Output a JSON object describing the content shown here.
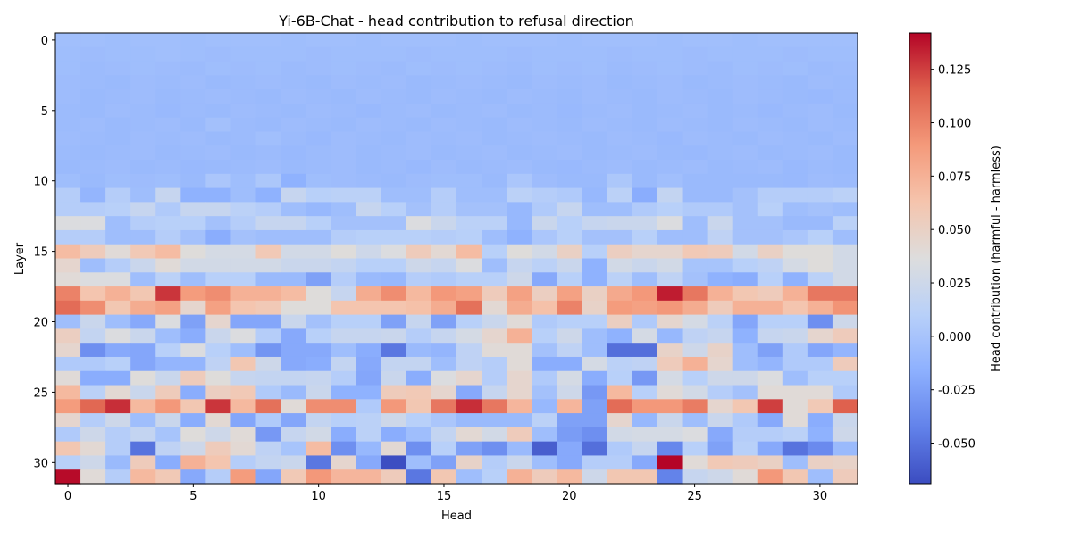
{
  "chart_data": {
    "type": "heatmap",
    "title": "Yi-6B-Chat - head contribution to refusal direction",
    "xlabel": "Head",
    "ylabel": "Layer",
    "colorbar_label": "Head contribution (harmful - harmless)",
    "colormap": "coolwarm",
    "vmin": -0.069,
    "vmax": 0.142,
    "x_ticks": [
      0,
      5,
      10,
      15,
      20,
      25,
      30
    ],
    "y_ticks": [
      0,
      5,
      10,
      15,
      20,
      25,
      30
    ],
    "colorbar_ticks": [
      "-0.050",
      "-0.025",
      "0.000",
      "0.025",
      "0.050",
      "0.075",
      "0.100",
      "0.125"
    ],
    "colorbar_tick_values": [
      -0.05,
      -0.025,
      0.0,
      0.025,
      0.05,
      0.075,
      0.1,
      0.125
    ],
    "grid": false,
    "values": [
      [
        -0.004,
        -0.004,
        -0.005,
        -0.004,
        -0.004,
        -0.005,
        -0.004,
        -0.004,
        -0.004,
        -0.005,
        -0.004,
        -0.004,
        -0.005,
        -0.004,
        -0.004,
        -0.004,
        -0.005,
        -0.004,
        -0.004,
        -0.004,
        -0.005,
        -0.004,
        -0.004,
        -0.004,
        -0.005,
        -0.004,
        -0.004,
        -0.005,
        -0.004,
        -0.004,
        -0.004,
        -0.004
      ],
      [
        -0.005,
        -0.006,
        -0.005,
        -0.005,
        -0.004,
        -0.005,
        -0.006,
        -0.005,
        -0.005,
        -0.005,
        -0.006,
        -0.005,
        -0.005,
        -0.005,
        -0.006,
        -0.005,
        -0.005,
        -0.005,
        -0.006,
        -0.005,
        -0.005,
        -0.005,
        -0.006,
        -0.005,
        -0.005,
        -0.006,
        -0.005,
        -0.005,
        -0.005,
        -0.006,
        -0.005,
        -0.005
      ],
      [
        -0.005,
        -0.007,
        -0.006,
        -0.005,
        -0.006,
        -0.007,
        -0.005,
        -0.006,
        -0.005,
        -0.007,
        -0.006,
        -0.005,
        -0.006,
        -0.007,
        -0.005,
        -0.006,
        -0.005,
        -0.006,
        -0.007,
        -0.005,
        -0.006,
        -0.005,
        -0.007,
        -0.006,
        -0.005,
        -0.006,
        -0.007,
        -0.005,
        -0.006,
        -0.005,
        -0.007,
        -0.006
      ],
      [
        -0.006,
        -0.007,
        -0.008,
        -0.006,
        -0.007,
        -0.006,
        -0.008,
        -0.007,
        -0.006,
        -0.007,
        -0.008,
        -0.006,
        -0.007,
        -0.006,
        -0.008,
        -0.007,
        -0.006,
        -0.007,
        -0.008,
        -0.006,
        -0.007,
        -0.006,
        -0.008,
        -0.007,
        -0.006,
        -0.008,
        -0.007,
        -0.006,
        -0.007,
        -0.008,
        -0.006,
        -0.007
      ],
      [
        -0.006,
        -0.008,
        -0.007,
        -0.006,
        -0.008,
        -0.007,
        -0.006,
        -0.007,
        -0.008,
        -0.006,
        -0.007,
        -0.008,
        -0.006,
        -0.007,
        -0.008,
        -0.006,
        -0.007,
        -0.008,
        -0.006,
        -0.007,
        -0.008,
        -0.006,
        -0.007,
        -0.008,
        -0.006,
        -0.007,
        -0.008,
        -0.006,
        -0.007,
        -0.008,
        -0.009,
        -0.007
      ],
      [
        -0.007,
        -0.008,
        -0.006,
        -0.007,
        -0.009,
        -0.007,
        -0.008,
        -0.006,
        -0.007,
        -0.008,
        -0.006,
        -0.007,
        -0.009,
        -0.007,
        -0.006,
        -0.008,
        -0.007,
        -0.006,
        -0.008,
        -0.007,
        -0.009,
        -0.007,
        -0.006,
        -0.008,
        -0.007,
        -0.006,
        -0.008,
        -0.007,
        -0.009,
        -0.007,
        -0.006,
        -0.008
      ],
      [
        -0.007,
        -0.006,
        -0.008,
        -0.007,
        -0.006,
        -0.008,
        -0.003,
        -0.007,
        -0.008,
        -0.006,
        -0.007,
        -0.008,
        -0.006,
        -0.007,
        -0.008,
        -0.006,
        -0.007,
        -0.008,
        -0.006,
        -0.007,
        -0.008,
        -0.006,
        -0.007,
        -0.008,
        -0.006,
        -0.007,
        -0.008,
        -0.006,
        -0.007,
        -0.008,
        -0.006,
        -0.007
      ],
      [
        -0.006,
        -0.007,
        -0.008,
        -0.006,
        -0.007,
        -0.006,
        -0.008,
        -0.007,
        -0.004,
        -0.007,
        -0.009,
        -0.006,
        -0.007,
        -0.008,
        -0.006,
        -0.007,
        -0.006,
        -0.008,
        -0.007,
        -0.006,
        -0.007,
        -0.008,
        -0.006,
        -0.007,
        -0.009,
        -0.006,
        -0.007,
        -0.008,
        -0.006,
        -0.007,
        -0.008,
        -0.006
      ],
      [
        -0.007,
        -0.008,
        -0.007,
        -0.006,
        -0.008,
        -0.007,
        -0.006,
        -0.008,
        -0.007,
        -0.009,
        -0.007,
        -0.006,
        -0.008,
        -0.007,
        -0.006,
        -0.008,
        -0.007,
        -0.006,
        -0.008,
        -0.007,
        -0.006,
        -0.008,
        -0.007,
        -0.006,
        -0.008,
        -0.009,
        -0.007,
        -0.006,
        -0.008,
        -0.007,
        -0.006,
        -0.008
      ],
      [
        -0.008,
        -0.007,
        -0.006,
        -0.008,
        -0.007,
        -0.009,
        -0.008,
        -0.007,
        -0.006,
        -0.008,
        -0.007,
        -0.006,
        -0.008,
        -0.007,
        -0.009,
        -0.006,
        -0.008,
        -0.007,
        -0.006,
        -0.008,
        -0.009,
        -0.007,
        -0.006,
        -0.008,
        -0.007,
        -0.006,
        -0.008,
        -0.007,
        -0.006,
        -0.009,
        -0.007,
        -0.008
      ],
      [
        -0.005,
        -0.008,
        -0.005,
        -0.006,
        -0.005,
        -0.008,
        0.002,
        -0.005,
        0.003,
        -0.015,
        -0.005,
        -0.006,
        -0.007,
        -0.008,
        -0.006,
        -0.005,
        -0.005,
        -0.008,
        0.002,
        -0.006,
        -0.008,
        -0.008,
        0.003,
        -0.008,
        -0.004,
        -0.008,
        -0.008,
        -0.008,
        -0.008,
        -0.009,
        -0.006,
        -0.007
      ],
      [
        0.008,
        -0.012,
        0.008,
        -0.005,
        0.02,
        -0.015,
        -0.015,
        -0.005,
        -0.015,
        0.02,
        0.01,
        0.012,
        0.012,
        -0.005,
        -0.005,
        0.008,
        -0.005,
        -0.005,
        0.012,
        0.008,
        0.005,
        -0.01,
        0.012,
        -0.018,
        0.018,
        -0.008,
        -0.008,
        -0.002,
        0.008,
        0.008,
        0.008,
        0.012
      ],
      [
        0.008,
        0.008,
        0.01,
        0.02,
        0.005,
        0.02,
        0.02,
        0.012,
        0.008,
        -0.005,
        -0.01,
        -0.005,
        0.02,
        0.01,
        -0.002,
        0.008,
        -0.002,
        -0.002,
        -0.01,
        0.005,
        0.02,
        -0.005,
        -0.005,
        0.005,
        0.01,
        0.005,
        0.005,
        -0.002,
        0.01,
        -0.005,
        -0.002,
        -0.005
      ],
      [
        0.035,
        0.035,
        -0.005,
        0.008,
        0.01,
        0.01,
        -0.002,
        0.008,
        0.02,
        0.02,
        0.01,
        -0.002,
        -0.002,
        -0.002,
        0.035,
        0.022,
        0.012,
        0.012,
        -0.01,
        0.022,
        0.01,
        0.02,
        0.022,
        0.022,
        0.035,
        -0.005,
        0.022,
        -0.002,
        -0.002,
        -0.008,
        -0.008,
        0.012
      ],
      [
        0.008,
        0.008,
        -0.005,
        -0.005,
        0.008,
        -0.002,
        -0.018,
        -0.002,
        -0.005,
        -0.005,
        -0.005,
        0.008,
        0.01,
        0.01,
        0.01,
        0.008,
        0.01,
        -0.005,
        -0.015,
        0.002,
        0.01,
        -0.002,
        -0.002,
        0.01,
        -0.005,
        -0.005,
        0.015,
        -0.002,
        -0.002,
        0.002,
        0.01,
        -0.005
      ],
      [
        0.068,
        0.055,
        0.04,
        0.058,
        0.068,
        0.038,
        0.03,
        0.03,
        0.058,
        0.028,
        0.028,
        0.038,
        0.025,
        0.035,
        0.055,
        0.042,
        0.068,
        0.01,
        0.038,
        0.028,
        0.05,
        0.01,
        0.052,
        0.045,
        0.045,
        0.058,
        0.055,
        0.028,
        0.05,
        0.038,
        0.038,
        0.028
      ],
      [
        0.045,
        -0.005,
        0.008,
        0.022,
        0.04,
        0.028,
        0.028,
        0.028,
        0.028,
        0.022,
        0.022,
        0.018,
        0.01,
        0.01,
        0.025,
        0.02,
        0.035,
        -0.005,
        0.02,
        0.012,
        0.022,
        -0.015,
        0.028,
        0.022,
        0.028,
        0.0,
        0.0,
        0.01,
        0.015,
        0.03,
        0.038,
        0.028
      ],
      [
        0.04,
        0.035,
        0.035,
        -0.005,
        0.012,
        -0.005,
        0.01,
        0.01,
        -0.008,
        -0.008,
        -0.025,
        0.008,
        -0.008,
        -0.01,
        0.008,
        0.005,
        0.01,
        0.01,
        0.025,
        -0.02,
        0.01,
        -0.015,
        0.012,
        -0.005,
        0.015,
        -0.002,
        -0.015,
        -0.018,
        0.01,
        -0.015,
        0.012,
        0.028
      ],
      [
        0.1,
        0.062,
        0.075,
        0.06,
        0.128,
        0.088,
        0.095,
        0.075,
        0.075,
        0.068,
        0.038,
        0.02,
        0.078,
        0.095,
        0.07,
        0.09,
        0.085,
        0.055,
        0.085,
        0.052,
        0.085,
        0.05,
        0.08,
        0.09,
        0.135,
        0.105,
        0.075,
        0.06,
        0.055,
        0.075,
        0.105,
        0.105
      ],
      [
        0.11,
        0.095,
        0.06,
        0.078,
        0.085,
        0.045,
        0.085,
        0.062,
        0.058,
        0.038,
        0.038,
        0.062,
        0.062,
        0.062,
        0.065,
        0.078,
        0.108,
        0.042,
        0.078,
        0.065,
        0.1,
        0.048,
        0.088,
        0.085,
        0.09,
        0.078,
        0.055,
        0.075,
        0.075,
        0.062,
        0.075,
        0.092
      ],
      [
        -0.005,
        0.022,
        -0.005,
        -0.02,
        0.035,
        -0.025,
        0.045,
        -0.022,
        -0.022,
        0.022,
        -0.002,
        0.01,
        0.01,
        -0.025,
        0.02,
        -0.025,
        0.01,
        0.022,
        0.04,
        0.005,
        0.01,
        0.01,
        0.052,
        0.005,
        0.045,
        0.03,
        0.012,
        -0.022,
        0.01,
        0.01,
        -0.035,
        0.025
      ],
      [
        0.052,
        0.018,
        0.035,
        0.022,
        -0.005,
        -0.018,
        0.022,
        0.035,
        0.008,
        -0.02,
        0.01,
        0.02,
        0.02,
        0.022,
        0.008,
        0.02,
        0.03,
        0.045,
        0.075,
        0.01,
        0.025,
        -0.005,
        -0.015,
        0.03,
        -0.01,
        0.015,
        0.02,
        -0.015,
        0.02,
        0.022,
        0.045,
        0.055
      ],
      [
        0.045,
        -0.035,
        -0.02,
        -0.022,
        0.01,
        0.035,
        0.01,
        -0.005,
        -0.032,
        -0.02,
        -0.02,
        -0.005,
        -0.018,
        -0.048,
        -0.008,
        -0.012,
        0.015,
        0.04,
        0.04,
        -0.002,
        0.015,
        -0.005,
        -0.052,
        -0.052,
        0.048,
        0.025,
        0.048,
        -0.005,
        -0.025,
        0.005,
        -0.022,
        -0.012
      ],
      [
        0.005,
        0.005,
        0.01,
        -0.022,
        -0.012,
        -0.012,
        0.015,
        0.06,
        0.025,
        -0.02,
        -0.018,
        0.018,
        -0.02,
        0.018,
        0.018,
        -0.005,
        0.015,
        0.008,
        0.04,
        -0.018,
        -0.018,
        0.03,
        0.012,
        0.015,
        0.055,
        0.075,
        0.045,
        -0.005,
        -0.012,
        0.005,
        0.005,
        0.055
      ],
      [
        0.04,
        -0.018,
        -0.018,
        0.038,
        0.022,
        0.055,
        0.038,
        0.02,
        0.018,
        0.018,
        0.02,
        0.008,
        -0.022,
        0.022,
        -0.018,
        0.035,
        0.045,
        0.008,
        0.045,
        0.005,
        0.03,
        -0.018,
        0.01,
        -0.03,
        0.03,
        0.01,
        0.025,
        0.025,
        0.035,
        -0.005,
        0.01,
        0.01
      ],
      [
        0.07,
        0.012,
        0.042,
        0.022,
        0.055,
        -0.018,
        0.052,
        0.058,
        0.005,
        -0.008,
        0.022,
        -0.015,
        -0.015,
        0.055,
        0.058,
        0.045,
        -0.02,
        0.02,
        0.045,
        -0.002,
        0.025,
        -0.03,
        0.07,
        0.01,
        0.04,
        0.028,
        0.008,
        -0.002,
        0.04,
        0.04,
        0.04,
        0.005
      ],
      [
        0.088,
        0.112,
        0.13,
        0.07,
        0.09,
        0.06,
        0.128,
        0.07,
        0.108,
        0.04,
        0.095,
        0.095,
        0.005,
        0.09,
        0.06,
        0.105,
        0.13,
        0.105,
        0.072,
        -0.01,
        0.072,
        -0.025,
        0.11,
        0.09,
        0.09,
        0.103,
        0.045,
        0.06,
        0.125,
        0.04,
        0.058,
        0.115
      ],
      [
        0.045,
        0.008,
        0.025,
        -0.005,
        0.022,
        -0.018,
        0.042,
        -0.022,
        0.005,
        -0.022,
        0.018,
        0.01,
        0.012,
        0.025,
        0.01,
        0.002,
        -0.008,
        -0.008,
        -0.008,
        0.012,
        -0.025,
        -0.025,
        0.045,
        -0.01,
        0.022,
        -0.005,
        0.022,
        0.005,
        -0.02,
        0.04,
        -0.018,
        0.022
      ],
      [
        0.005,
        0.025,
        0.008,
        0.018,
        0.0,
        0.038,
        0.025,
        0.04,
        -0.03,
        0.02,
        0.028,
        -0.018,
        0.012,
        -0.018,
        -0.005,
        0.018,
        0.042,
        0.028,
        0.055,
        -0.005,
        -0.028,
        -0.035,
        0.028,
        0.03,
        0.03,
        0.035,
        -0.02,
        0.008,
        0.008,
        0.012,
        -0.015,
        0.025
      ],
      [
        0.06,
        0.042,
        0.008,
        -0.05,
        0.015,
        0.025,
        0.055,
        0.042,
        0.015,
        0.0,
        0.068,
        -0.035,
        -0.01,
        0.042,
        -0.035,
        0.01,
        -0.025,
        -0.035,
        -0.008,
        -0.06,
        -0.02,
        -0.052,
        0.005,
        0.02,
        -0.04,
        0.01,
        -0.025,
        0.01,
        -0.02,
        -0.05,
        -0.038,
        -0.008
      ],
      [
        0.01,
        0.025,
        -0.008,
        0.055,
        -0.018,
        0.075,
        0.062,
        0.008,
        0.018,
        0.022,
        -0.048,
        0.045,
        -0.02,
        -0.068,
        -0.005,
        -0.025,
        0.048,
        0.008,
        0.022,
        -0.005,
        -0.02,
        0.008,
        0.008,
        -0.02,
        0.142,
        0.04,
        0.058,
        0.055,
        0.05,
        -0.005,
        0.05,
        0.048
      ],
      [
        0.14,
        0.04,
        0.008,
        0.07,
        0.058,
        -0.02,
        0.008,
        0.088,
        -0.022,
        0.058,
        0.09,
        0.072,
        0.072,
        0.055,
        -0.048,
        0.06,
        -0.005,
        0.01,
        0.075,
        0.055,
        0.07,
        0.025,
        0.06,
        0.06,
        -0.042,
        0.02,
        0.025,
        0.04,
        0.09,
        0.06,
        -0.005,
        0.055
      ]
    ]
  }
}
